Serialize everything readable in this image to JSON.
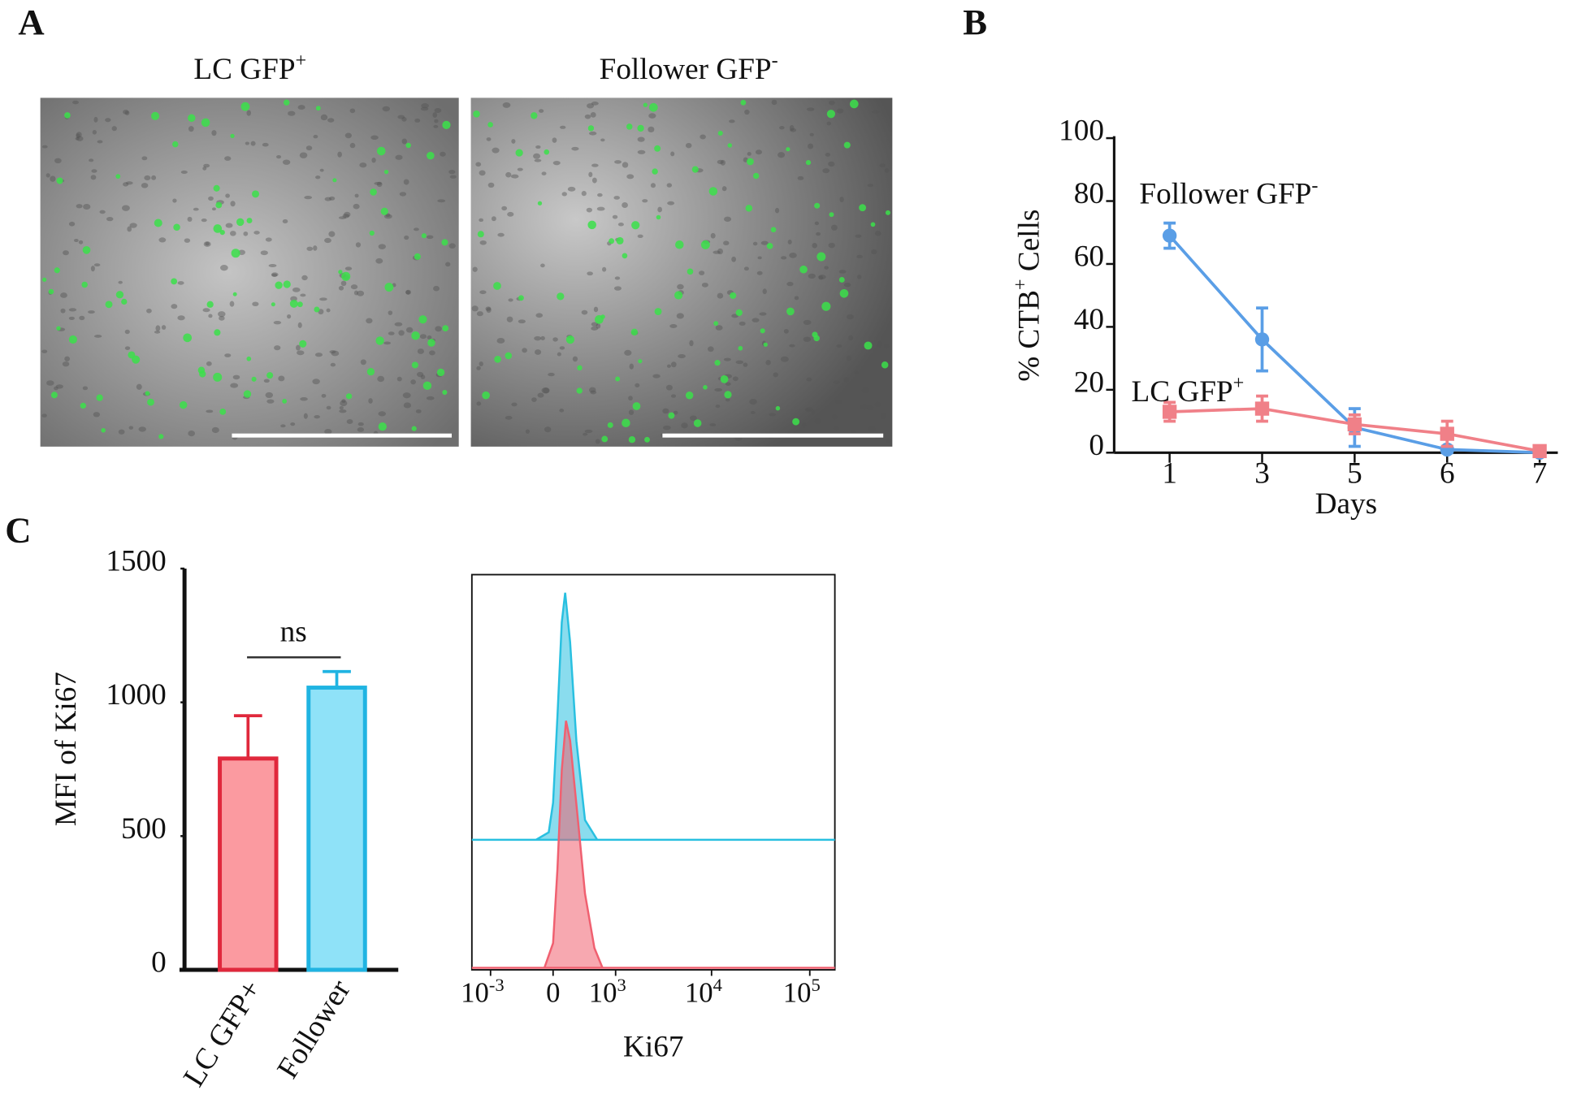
{
  "panel_labels": [
    "A",
    "B",
    "C"
  ],
  "images": [
    {
      "title": "LC GFP",
      "sup": "+"
    },
    {
      "title": "Follower GFP",
      "sup": "-"
    }
  ],
  "chart_data": [
    {
      "type": "line",
      "categories": [
        "1",
        "3",
        "5",
        "6",
        "7"
      ],
      "xlabel": "Days",
      "ylabel": {
        "text": "% CTB",
        "sup": "+",
        "after": "Cells"
      },
      "ylim": [
        0,
        100
      ],
      "yticks": [
        0,
        20,
        40,
        60,
        80,
        100
      ],
      "series": [
        {
          "name": "Follower GFP",
          "name_sup": "-",
          "color": "#5a9ee6",
          "marker": "circle",
          "values": [
            69,
            36,
            8,
            1,
            0
          ],
          "errors": [
            4,
            10,
            6,
            1,
            0.5
          ]
        },
        {
          "name": "LC GFP",
          "name_sup": "+",
          "color": "#f08088",
          "marker": "square",
          "values": [
            13,
            14,
            9,
            6,
            0.5
          ],
          "errors": [
            3,
            4,
            3,
            4,
            1
          ]
        }
      ]
    },
    {
      "type": "bar",
      "categories": [
        "LC GFP+",
        "Follower"
      ],
      "values": [
        790,
        1055
      ],
      "errors": [
        160,
        60
      ],
      "colors": [
        "#fb9aa0",
        "#8fe2f8"
      ],
      "edge_colors": [
        "#e0283c",
        "#20b4e2"
      ],
      "ylabel": "MFI of Ki67",
      "ylim": [
        0,
        1500
      ],
      "yticks": [
        0,
        500,
        1000,
        1500
      ],
      "significance": "ns"
    },
    {
      "type": "density",
      "xlabel": "Ki67",
      "xscale": "biexponential",
      "xlim": [
        -1600,
        180000
      ],
      "ylim": [
        0,
        100
      ],
      "xticks": [
        {
          "value": -1000,
          "label": "10",
          "sup": "-3"
        },
        0,
        {
          "value": 1000,
          "label": "10",
          "sup": "3"
        },
        {
          "value": 10000,
          "label": "10",
          "sup": "4"
        },
        {
          "value": 100000,
          "label": "10",
          "sup": "5"
        }
      ],
      "series": [
        {
          "color": "#29c0e0",
          "x": [
            -1600,
            -200,
            -50,
            0,
            50,
            100,
            140,
            200,
            280,
            400,
            600,
            180000
          ],
          "values": [
            0,
            0,
            3,
            15,
            50,
            88,
            100,
            80,
            40,
            8,
            0,
            0
          ]
        },
        {
          "color": "#f06070",
          "x": [
            -1600,
            -100,
            0,
            50,
            100,
            150,
            200,
            300,
            400,
            550,
            700,
            180000
          ],
          "values": [
            0,
            0,
            10,
            40,
            80,
            100,
            92,
            60,
            30,
            8,
            0,
            0
          ]
        }
      ]
    }
  ]
}
